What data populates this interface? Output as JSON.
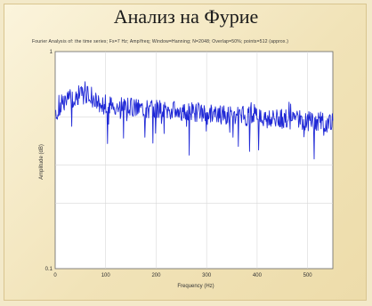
{
  "title": "Анализ на Фурие",
  "subtitle": "Fourier Analysis of: the time series; Fs=7 Hz; Amp/freq; Window=Hanning; N=2048; Overlap=50%; points=512 (approx.)",
  "chart_data": {
    "type": "line",
    "title": "",
    "xlabel": "Frequency (Hz)",
    "ylabel": "Amplitude (dB)",
    "xlim": [
      0,
      550
    ],
    "ylim": [
      0.1,
      1
    ],
    "x_ticks": [
      "0",
      "100",
      "200",
      "300",
      "400",
      "500"
    ],
    "y_ticks_visible": [
      "1",
      "0.1"
    ],
    "grid": true,
    "series": [
      {
        "color": "#1f28d6",
        "start_x": 1,
        "end_x": 550,
        "trend_start_y": 0.59,
        "trend_end_y": 0.47
      }
    ]
  }
}
